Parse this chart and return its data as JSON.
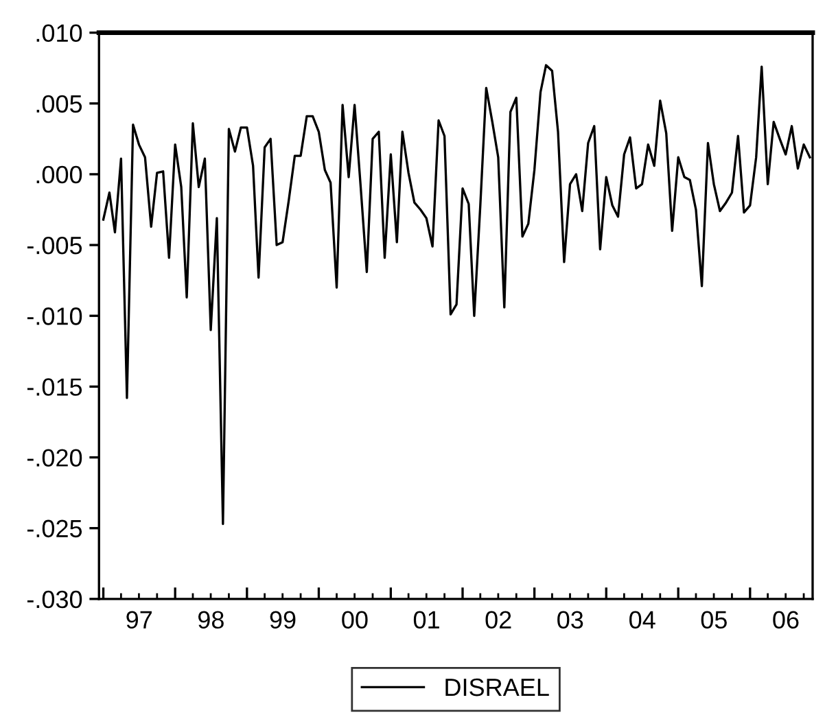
{
  "chart_data": {
    "type": "line",
    "x": [
      "1997-01",
      "1997-02",
      "1997-03",
      "1997-04",
      "1997-05",
      "1997-06",
      "1997-07",
      "1997-08",
      "1997-09",
      "1997-10",
      "1997-11",
      "1997-12",
      "1998-01",
      "1998-02",
      "1998-03",
      "1998-04",
      "1998-05",
      "1998-06",
      "1998-07",
      "1998-08",
      "1998-09",
      "1998-10",
      "1998-11",
      "1998-12",
      "1999-01",
      "1999-02",
      "1999-03",
      "1999-04",
      "1999-05",
      "1999-06",
      "1999-07",
      "1999-08",
      "1999-09",
      "1999-10",
      "1999-11",
      "1999-12",
      "2000-01",
      "2000-02",
      "2000-03",
      "2000-04",
      "2000-05",
      "2000-06",
      "2000-07",
      "2000-08",
      "2000-09",
      "2000-10",
      "2000-11",
      "2000-12",
      "2001-01",
      "2001-02",
      "2001-03",
      "2001-04",
      "2001-05",
      "2001-06",
      "2001-07",
      "2001-08",
      "2001-09",
      "2001-10",
      "2001-11",
      "2001-12",
      "2002-01",
      "2002-02",
      "2002-03",
      "2002-04",
      "2002-05",
      "2002-06",
      "2002-07",
      "2002-08",
      "2002-09",
      "2002-10",
      "2002-11",
      "2002-12",
      "2003-01",
      "2003-02",
      "2003-03",
      "2003-04",
      "2003-05",
      "2003-06",
      "2003-07",
      "2003-08",
      "2003-09",
      "2003-10",
      "2003-11",
      "2003-12",
      "2004-01",
      "2004-02",
      "2004-03",
      "2004-04",
      "2004-05",
      "2004-06",
      "2004-07",
      "2004-08",
      "2004-09",
      "2004-10",
      "2004-11",
      "2004-12",
      "2005-01",
      "2005-02",
      "2005-03",
      "2005-04",
      "2005-05",
      "2005-06",
      "2005-07",
      "2005-08",
      "2005-09",
      "2005-10",
      "2005-11",
      "2005-12",
      "2006-01",
      "2006-02",
      "2006-03",
      "2006-04",
      "2006-05",
      "2006-06",
      "2006-07",
      "2006-08",
      "2006-09",
      "2006-10",
      "2006-11"
    ],
    "series": [
      {
        "name": "DISRAEL",
        "color": "#000000",
        "values": [
          -0.0032,
          -0.0013,
          -0.0041,
          0.0011,
          -0.0158,
          0.0035,
          0.0021,
          0.0012,
          -0.0037,
          0.0001,
          0.0002,
          -0.0059,
          0.0021,
          -0.0009,
          -0.0087,
          0.0036,
          -0.0009,
          0.0011,
          -0.011,
          -0.0031,
          -0.0247,
          0.0032,
          0.0016,
          0.0033,
          0.0033,
          0.0006,
          -0.0073,
          0.0019,
          0.0025,
          -0.005,
          -0.0048,
          -0.0019,
          0.0013,
          0.0013,
          0.0041,
          0.0041,
          0.003,
          0.0003,
          -0.0006,
          -0.008,
          0.0049,
          -0.0002,
          0.0049,
          -0.0009,
          -0.0069,
          0.0025,
          0.003,
          -0.0059,
          0.0014,
          -0.0048,
          0.003,
          0.0001,
          -0.002,
          -0.0025,
          -0.0031,
          -0.0051,
          0.0038,
          0.0027,
          -0.0099,
          -0.0092,
          -0.001,
          -0.0021,
          -0.01,
          -0.0022,
          0.0061,
          0.0037,
          0.0012,
          -0.0094,
          0.0044,
          0.0054,
          -0.0044,
          -0.0035,
          0.0003,
          0.0058,
          0.0077,
          0.0073,
          0.003,
          -0.0062,
          -0.0007,
          0.0,
          -0.0026,
          0.0022,
          0.0034,
          -0.0053,
          -0.0002,
          -0.0022,
          -0.003,
          0.0014,
          0.0026,
          -0.001,
          -0.0007,
          0.0021,
          0.0006,
          0.0052,
          0.0029,
          -0.004,
          0.0012,
          -0.0002,
          -0.0004,
          -0.0025,
          -0.0079,
          0.0022,
          -0.0007,
          -0.0026,
          -0.002,
          -0.0013,
          0.0027,
          -0.0027,
          -0.0022,
          0.0012,
          0.0076,
          -0.0007,
          0.0037,
          0.0025,
          0.0014,
          0.0034,
          0.0004,
          0.0021,
          0.0012
        ]
      }
    ],
    "xlim": [
      "1996-12-10",
      "2006-11-15"
    ],
    "xticks": [
      {
        "value": "1997-01-01",
        "label": null
      },
      {
        "value": "1997-07-02",
        "label": "97"
      },
      {
        "value": "1998-01-01",
        "label": null
      },
      {
        "value": "1998-07-02",
        "label": "98"
      },
      {
        "value": "1999-01-01",
        "label": null
      },
      {
        "value": "1999-07-02",
        "label": "99"
      },
      {
        "value": "2000-01-01",
        "label": null
      },
      {
        "value": "2000-07-02",
        "label": "00"
      },
      {
        "value": "2001-01-01",
        "label": null
      },
      {
        "value": "2001-07-02",
        "label": "01"
      },
      {
        "value": "2002-01-01",
        "label": null
      },
      {
        "value": "2002-07-02",
        "label": "02"
      },
      {
        "value": "2003-01-01",
        "label": null
      },
      {
        "value": "2003-07-02",
        "label": "03"
      },
      {
        "value": "2004-01-01",
        "label": null
      },
      {
        "value": "2004-07-02",
        "label": "04"
      },
      {
        "value": "2005-01-01",
        "label": null
      },
      {
        "value": "2005-07-02",
        "label": "05"
      },
      {
        "value": "2006-01-01",
        "label": null
      },
      {
        "value": "2006-07-02",
        "label": "06"
      }
    ],
    "ylim": [
      -0.03,
      0.01
    ],
    "yticks": [
      {
        "value": 0.01,
        "label": ".010"
      },
      {
        "value": 0.005,
        "label": ".005"
      },
      {
        "value": 0.0,
        "label": ".000"
      },
      {
        "value": -0.005,
        "label": "-.005"
      },
      {
        "value": -0.01,
        "label": "-.010"
      },
      {
        "value": -0.015,
        "label": "-.015"
      },
      {
        "value": -0.02,
        "label": "-.020"
      },
      {
        "value": -0.025,
        "label": "-.025"
      },
      {
        "value": -0.03,
        "label": "-.030"
      }
    ],
    "grid": false,
    "legend": "bottom",
    "marker": "none",
    "line_style": "solid"
  }
}
